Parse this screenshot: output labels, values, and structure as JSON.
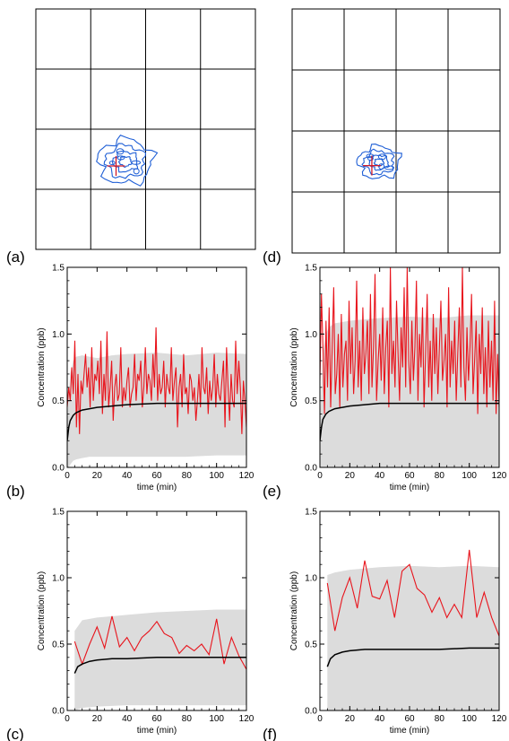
{
  "figure": {
    "colors": {
      "data_line": "#e8141c",
      "model_mean": "#000000",
      "envelope": "#dcdcdc",
      "contour": "#1f5fd6",
      "marker": "#d21a28",
      "grid": "#000000"
    },
    "maps": [
      {
        "label": "(a)",
        "panel": "a",
        "grid_cols": 4,
        "grid_rows": 4,
        "icon": "contour-map"
      },
      {
        "label": "(d)",
        "panel": "d",
        "grid_cols": 4,
        "grid_rows": 4,
        "icon": "contour-map"
      }
    ]
  },
  "chart_data": [
    {
      "panel": "b",
      "label": "(b)",
      "type": "line",
      "xlabel": "time (min)",
      "ylabel": "Concentration (ppb)",
      "xlim": [
        0,
        120
      ],
      "ylim": [
        0,
        1.5
      ],
      "xticks": [
        0,
        20,
        40,
        60,
        80,
        100,
        120
      ],
      "yticks": [
        0.0,
        0.5,
        1.0,
        1.5
      ],
      "ytick_labels": [
        "0.0",
        "0.5",
        "1.0",
        "1.5"
      ],
      "envelope": {
        "x": [
          0,
          1,
          2,
          4,
          6,
          10,
          15,
          20,
          30,
          40,
          60,
          80,
          100,
          120
        ],
        "lower": [
          0.0,
          0.0,
          0.02,
          0.05,
          0.06,
          0.07,
          0.08,
          0.08,
          0.08,
          0.08,
          0.08,
          0.08,
          0.09,
          0.09
        ],
        "upper": [
          0.3,
          0.55,
          0.7,
          0.8,
          0.83,
          0.84,
          0.83,
          0.82,
          0.84,
          0.85,
          0.86,
          0.84,
          0.86,
          0.85
        ]
      },
      "mean": {
        "x": [
          0,
          1,
          2,
          4,
          6,
          8,
          10,
          15,
          20,
          30,
          40,
          60,
          80,
          100,
          120
        ],
        "y": [
          0.2,
          0.3,
          0.35,
          0.39,
          0.41,
          0.42,
          0.43,
          0.44,
          0.45,
          0.46,
          0.47,
          0.48,
          0.48,
          0.48,
          0.48
        ]
      },
      "series": [
        {
          "values": [
            0.45,
            0.6,
            0.5,
            0.75,
            0.55,
            0.95,
            0.3,
            0.7,
            0.25,
            0.65,
            0.55,
            0.7,
            0.85,
            0.6,
            0.75,
            0.45,
            0.9,
            0.5,
            0.7,
            0.65,
            0.8,
            0.55,
            0.95,
            0.4,
            0.7,
            0.5,
            1.02,
            0.45,
            0.6,
            0.8,
            0.35,
            0.6,
            0.7,
            0.5,
            0.55,
            0.9,
            0.45,
            0.6,
            0.5,
            0.65,
            0.75,
            0.45,
            0.55,
            0.6,
            0.85,
            0.5,
            0.7,
            0.65,
            0.8,
            0.45,
            0.6,
            0.9,
            0.55,
            0.7,
            0.65,
            0.5,
            0.85,
            0.6,
            1.05,
            0.5,
            0.7,
            0.55,
            0.6,
            0.8,
            0.45,
            0.7,
            0.6,
            0.55,
            0.9,
            0.5,
            0.65,
            0.75,
            0.3,
            0.6,
            0.7,
            0.45,
            0.85,
            0.55,
            0.6,
            0.4,
            0.7,
            0.65,
            0.5,
            0.6,
            0.35,
            0.5,
            0.7,
            0.45,
            0.9,
            0.6,
            0.55,
            0.75,
            0.4,
            0.65,
            0.5,
            0.6,
            0.85,
            0.45,
            0.7,
            0.55,
            0.5,
            0.65,
            0.8,
            0.3,
            0.9,
            0.6,
            0.35,
            0.7,
            0.5,
            0.45,
            0.95,
            0.55,
            0.8,
            0.6,
            0.25,
            0.65,
            0.5,
            0.3
          ]
        }
      ]
    },
    {
      "panel": "c",
      "label": "(c)",
      "type": "line",
      "xlabel": "time (min)",
      "ylabel": "Concentration (ppb)",
      "xlim": [
        0,
        120
      ],
      "ylim": [
        0,
        1.5
      ],
      "xticks": [
        0,
        20,
        40,
        60,
        80,
        100,
        120
      ],
      "yticks": [
        0.0,
        0.5,
        1.0,
        1.5
      ],
      "ytick_labels": [
        "0.0",
        "0.5",
        "1.0",
        "1.5"
      ],
      "envelope": {
        "x": [
          5,
          10,
          20,
          40,
          60,
          80,
          100,
          120
        ],
        "lower": [
          0.0,
          0.02,
          0.03,
          0.04,
          0.04,
          0.04,
          0.04,
          0.04
        ],
        "upper": [
          0.6,
          0.68,
          0.7,
          0.72,
          0.74,
          0.75,
          0.76,
          0.76
        ]
      },
      "mean": {
        "x": [
          5,
          7,
          10,
          15,
          20,
          30,
          40,
          60,
          80,
          100,
          120
        ],
        "y": [
          0.28,
          0.33,
          0.35,
          0.37,
          0.38,
          0.39,
          0.39,
          0.4,
          0.4,
          0.4,
          0.4
        ]
      },
      "series": [
        {
          "x": [
            5,
            10,
            15,
            20,
            25,
            30,
            35,
            40,
            45,
            50,
            55,
            60,
            65,
            70,
            75,
            80,
            85,
            90,
            95,
            100,
            105,
            110,
            115,
            120
          ],
          "values": [
            0.52,
            0.35,
            0.5,
            0.63,
            0.47,
            0.71,
            0.48,
            0.55,
            0.45,
            0.55,
            0.6,
            0.67,
            0.58,
            0.55,
            0.43,
            0.49,
            0.45,
            0.5,
            0.42,
            0.69,
            0.35,
            0.55,
            0.41,
            0.31
          ]
        }
      ]
    },
    {
      "panel": "e",
      "label": "(e)",
      "type": "line",
      "xlabel": "time (min)",
      "ylabel": "Concentration (ppb)",
      "xlim": [
        0,
        120
      ],
      "ylim": [
        0,
        1.5
      ],
      "xticks": [
        0,
        20,
        40,
        60,
        80,
        100,
        120
      ],
      "yticks": [
        0.0,
        0.5,
        1.0,
        1.5
      ],
      "ytick_labels": [
        "0.0",
        "0.5",
        "1.0",
        "1.5"
      ],
      "envelope": {
        "x": [
          0,
          1,
          2,
          4,
          6,
          10,
          20,
          40,
          60,
          80,
          100,
          120
        ],
        "lower": [
          0.0,
          0.0,
          0.0,
          0.0,
          0.0,
          0.0,
          0.0,
          0.0,
          0.0,
          0.0,
          0.0,
          0.0
        ],
        "upper": [
          0.3,
          0.6,
          0.85,
          1.0,
          1.05,
          1.08,
          1.1,
          1.12,
          1.13,
          1.12,
          1.14,
          1.14
        ]
      },
      "mean": {
        "x": [
          0,
          1,
          2,
          4,
          6,
          8,
          10,
          15,
          20,
          30,
          40,
          60,
          80,
          100,
          120
        ],
        "y": [
          0.2,
          0.3,
          0.36,
          0.4,
          0.42,
          0.43,
          0.44,
          0.45,
          0.46,
          0.47,
          0.48,
          0.48,
          0.48,
          0.48,
          0.48
        ]
      },
      "series": [
        {
          "values": [
            0.65,
            1.3,
            0.9,
            0.4,
            1.1,
            0.6,
            1.2,
            0.45,
            0.9,
            1.35,
            0.55,
            0.7,
            1.0,
            0.45,
            1.15,
            0.6,
            0.85,
            0.95,
            0.5,
            1.25,
            0.7,
            1.05,
            0.55,
            0.8,
            1.4,
            0.6,
            0.95,
            0.5,
            1.2,
            0.7,
            0.85,
            1.1,
            0.55,
            1.3,
            0.6,
            0.9,
            1.45,
            0.5,
            0.8,
            1.0,
            0.65,
            1.2,
            0.55,
            0.9,
            1.1,
            0.45,
            1.5,
            0.7,
            0.95,
            0.6,
            1.25,
            0.85,
            0.5,
            1.05,
            0.75,
            1.35,
            0.6,
            1.5,
            0.8,
            0.55,
            1.1,
            0.65,
            0.9,
            1.4,
            0.5,
            1.0,
            0.75,
            1.2,
            0.45,
            0.85,
            1.3,
            0.6,
            0.95,
            0.5,
            1.15,
            0.7,
            1.05,
            0.55,
            0.9,
            1.25,
            0.65,
            0.8,
            1.0,
            0.45,
            1.35,
            0.6,
            0.95,
            0.7,
            1.1,
            0.5,
            0.85,
            1.2,
            0.6,
            1.5,
            0.75,
            0.5,
            1.05,
            0.65,
            0.9,
            1.3,
            0.55,
            0.8,
            1.1,
            0.4,
            1.0,
            0.7,
            1.2,
            0.55,
            0.9,
            0.45,
            1.1,
            0.6,
            0.95,
            0.5,
            1.25,
            0.4,
            0.85,
            0.45
          ]
        }
      ]
    },
    {
      "panel": "f",
      "label": "(f)",
      "type": "line",
      "xlabel": "time (min)",
      "ylabel": "Concentration (ppb)",
      "xlim": [
        0,
        120
      ],
      "ylim": [
        0,
        1.5
      ],
      "xticks": [
        0,
        20,
        40,
        60,
        80,
        100,
        120
      ],
      "yticks": [
        0.0,
        0.5,
        1.0,
        1.5
      ],
      "ytick_labels": [
        "0.0",
        "0.5",
        "1.0",
        "1.5"
      ],
      "envelope": {
        "x": [
          5,
          10,
          20,
          40,
          60,
          80,
          100,
          120
        ],
        "lower": [
          0.0,
          0.0,
          0.0,
          0.0,
          0.0,
          0.0,
          0.0,
          0.0
        ],
        "upper": [
          1.02,
          1.04,
          1.06,
          1.08,
          1.09,
          1.08,
          1.09,
          1.08
        ]
      },
      "mean": {
        "x": [
          5,
          7,
          10,
          15,
          20,
          30,
          40,
          60,
          80,
          100,
          120
        ],
        "y": [
          0.33,
          0.39,
          0.42,
          0.44,
          0.45,
          0.46,
          0.46,
          0.46,
          0.46,
          0.47,
          0.47
        ]
      },
      "series": [
        {
          "x": [
            5,
            10,
            15,
            20,
            25,
            30,
            35,
            40,
            45,
            50,
            55,
            60,
            65,
            70,
            75,
            80,
            85,
            90,
            95,
            100,
            105,
            110,
            115,
            120
          ],
          "values": [
            0.96,
            0.6,
            0.85,
            1.0,
            0.77,
            1.13,
            0.86,
            0.84,
            0.98,
            0.7,
            1.05,
            1.1,
            0.92,
            0.87,
            0.74,
            0.85,
            0.7,
            0.8,
            0.7,
            1.21,
            0.7,
            0.89,
            0.7,
            0.56
          ]
        }
      ]
    }
  ]
}
